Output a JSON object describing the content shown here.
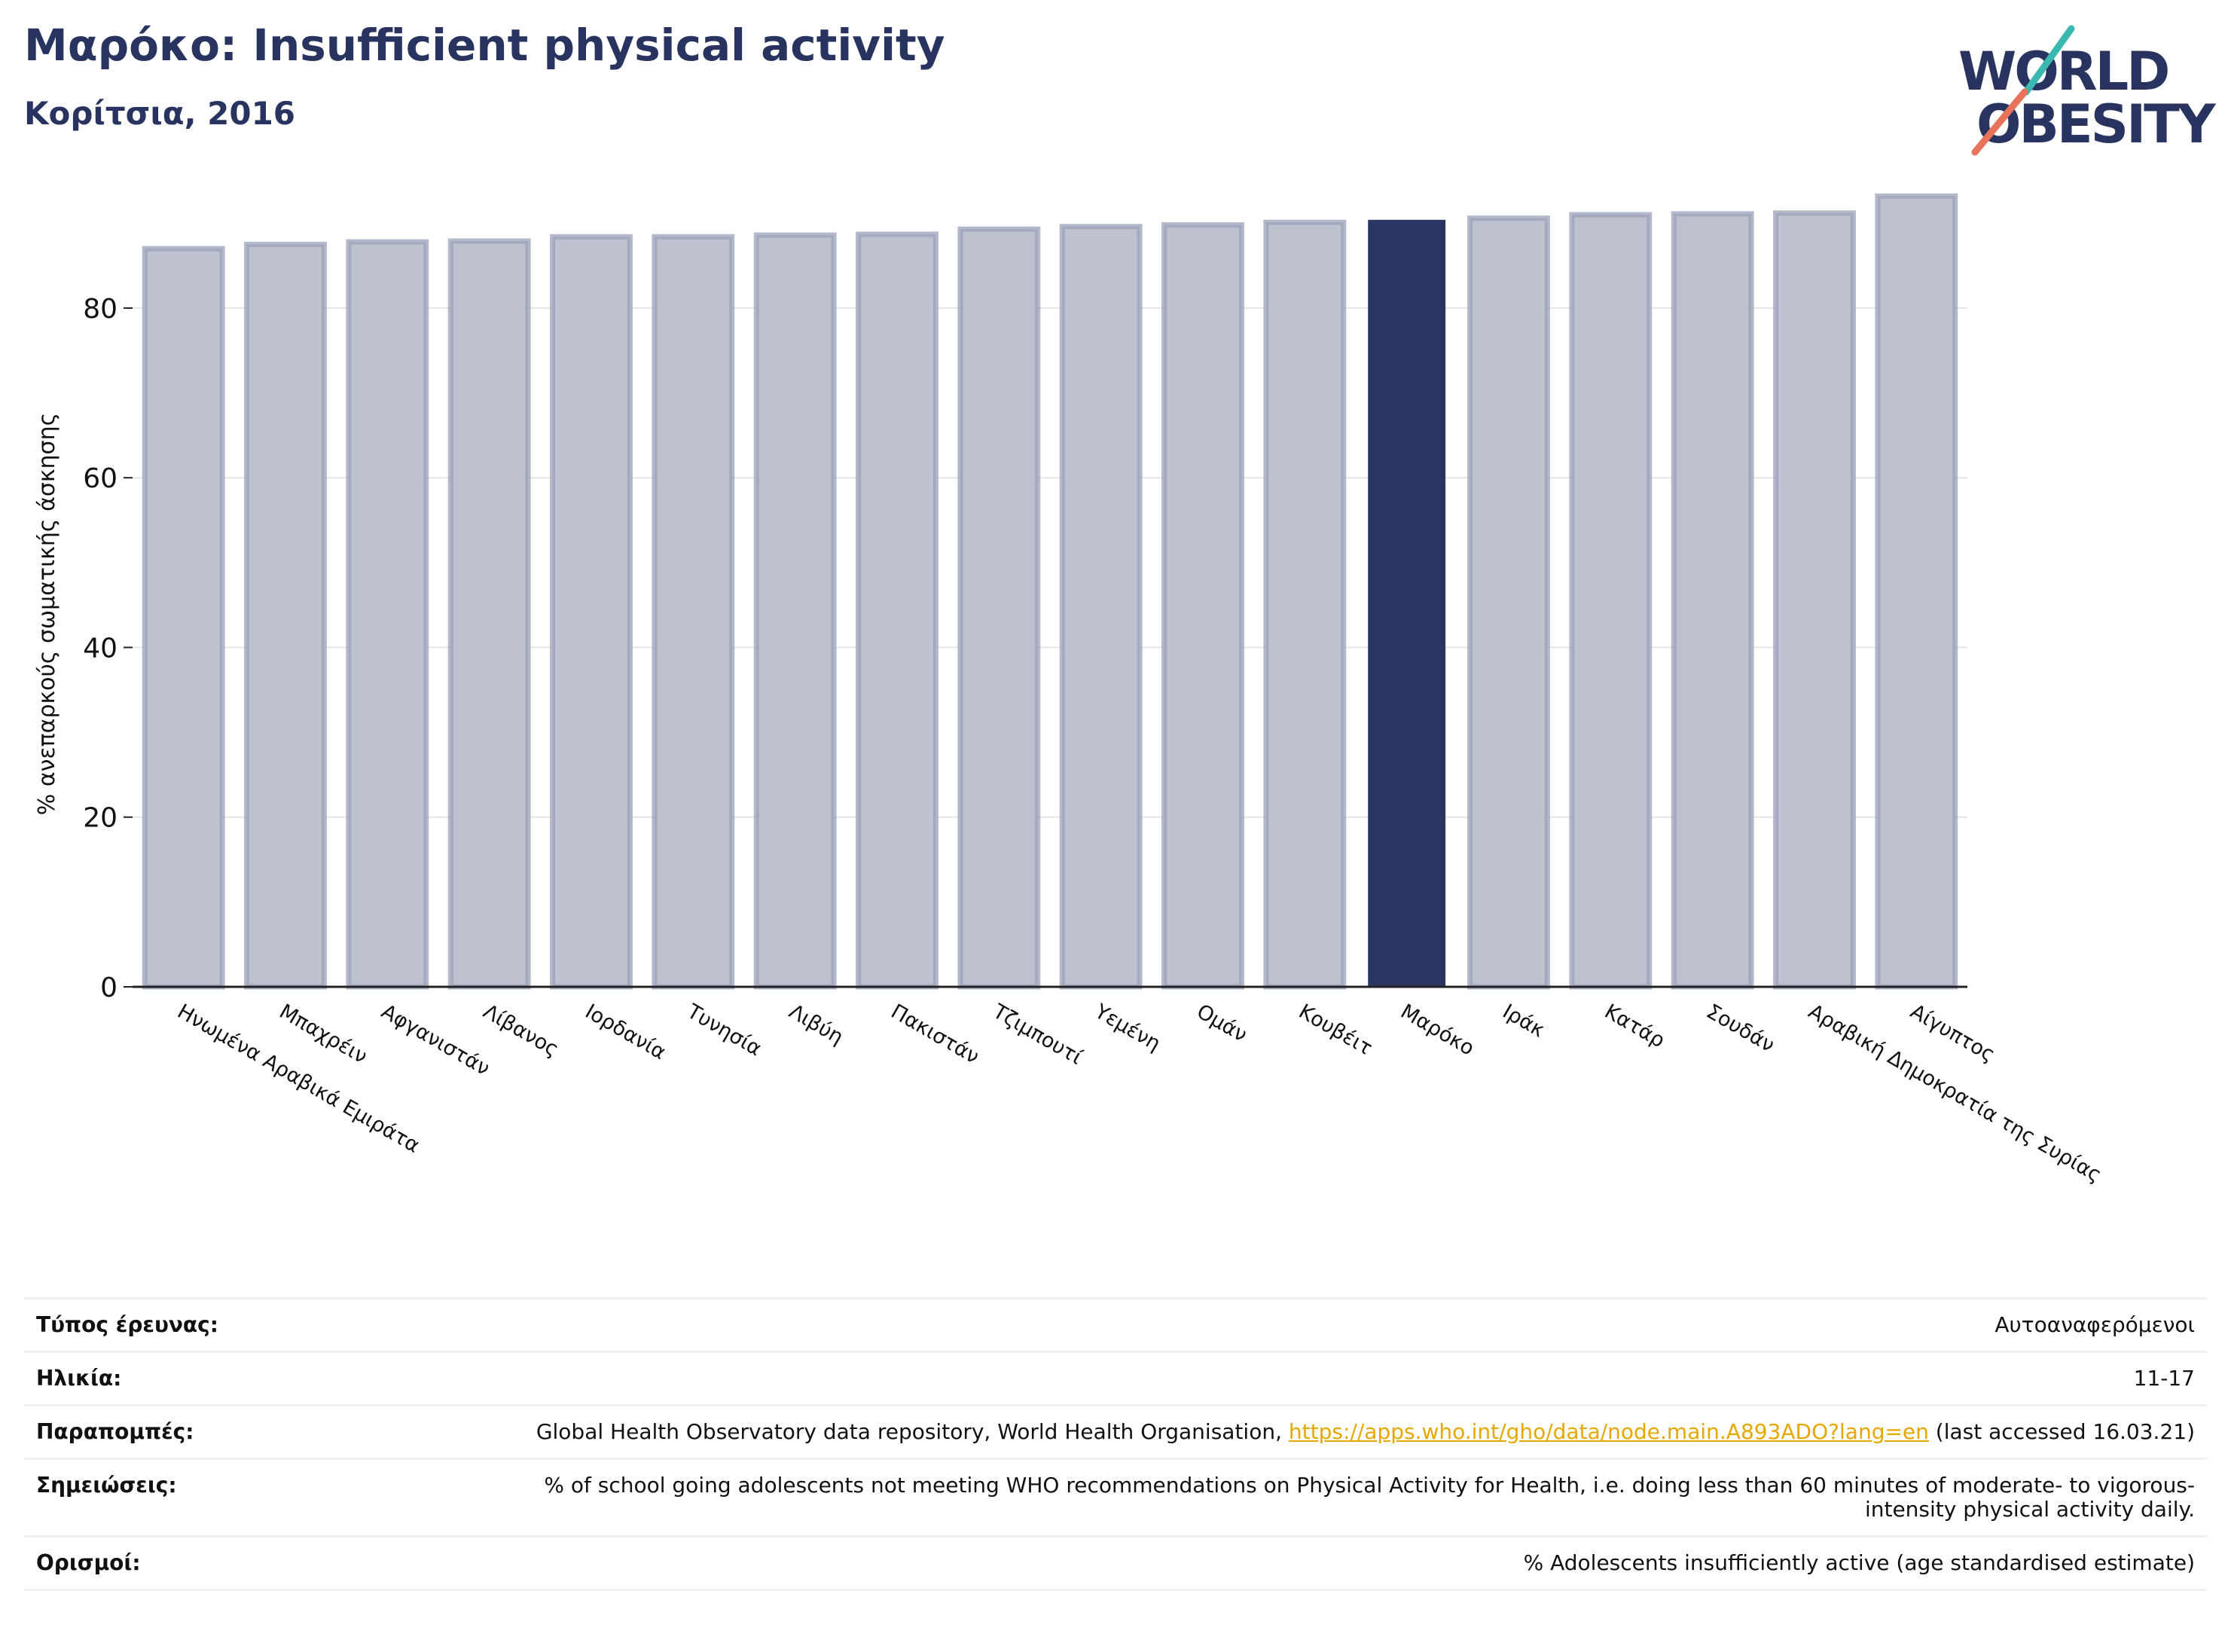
{
  "header": {
    "title": "Μαρόκο: Insufficient physical activity",
    "subtitle": "Κορίτσια, 2016"
  },
  "logo": {
    "line1": "WORLD",
    "line2": "OBESITY",
    "colors": {
      "text": "#283360",
      "slash_teal": "#3bb8b0",
      "slash_coral": "#e8735a"
    }
  },
  "chart_data": {
    "type": "bar",
    "title": "",
    "xlabel": "",
    "ylabel": "% ανεπαρκούς σωματικής άσκησης",
    "ylim": [
      0,
      95
    ],
    "yticks": [
      0,
      20,
      40,
      60,
      80
    ],
    "grid": true,
    "highlight_category": "Μαρόκο",
    "colors": {
      "bar": "#bec1ce",
      "bar_edge": "#9aa0b8",
      "highlight": "#2a3561"
    },
    "categories": [
      "Ηνωμένα Αραβικά Εμιράτα",
      "Μπαχρέιν",
      "Αφγανιστάν",
      "Λίβανος",
      "Ιορδανία",
      "Τυνησία",
      "Λιβύη",
      "Πακιστάν",
      "Τζιμπουτί",
      "Υεμένη",
      "Ομάν",
      "Κουβέιτ",
      "Μαρόκο",
      "Ιράκ",
      "Κατάρ",
      "Σουδάν",
      "Αραβική Δημοκρατία της Συρίας",
      "Αίγυπτος"
    ],
    "values": [
      87.0,
      87.5,
      87.8,
      87.9,
      88.4,
      88.4,
      88.6,
      88.7,
      89.3,
      89.6,
      89.8,
      90.1,
      90.4,
      90.6,
      91.0,
      91.1,
      91.2,
      93.2
    ]
  },
  "info": {
    "rows": [
      {
        "label": "Τύπος έρευνας:",
        "value": "Αυτοαναφερόμενοι"
      },
      {
        "label": "Ηλικία:",
        "value": "11-17"
      },
      {
        "label": "Παραπομπές:",
        "value_before": "Global Health Observatory data repository, World Health Organisation, ",
        "link": "https://apps.who.int/gho/data/node.main.A893ADO?lang=en",
        "value_after": " (last accessed 16.03.21)"
      },
      {
        "label": "Σημειώσεις:",
        "value": "% of school going adolescents not meeting WHO recommendations on Physical Activity for Health, i.e. doing less than 60 minutes of moderate- to vigorous-intensity physical activity daily."
      },
      {
        "label": "Ορισμοί:",
        "value": "% Adolescents insufficiently active (age standardised estimate)"
      }
    ],
    "link_color": "#e6a800"
  }
}
